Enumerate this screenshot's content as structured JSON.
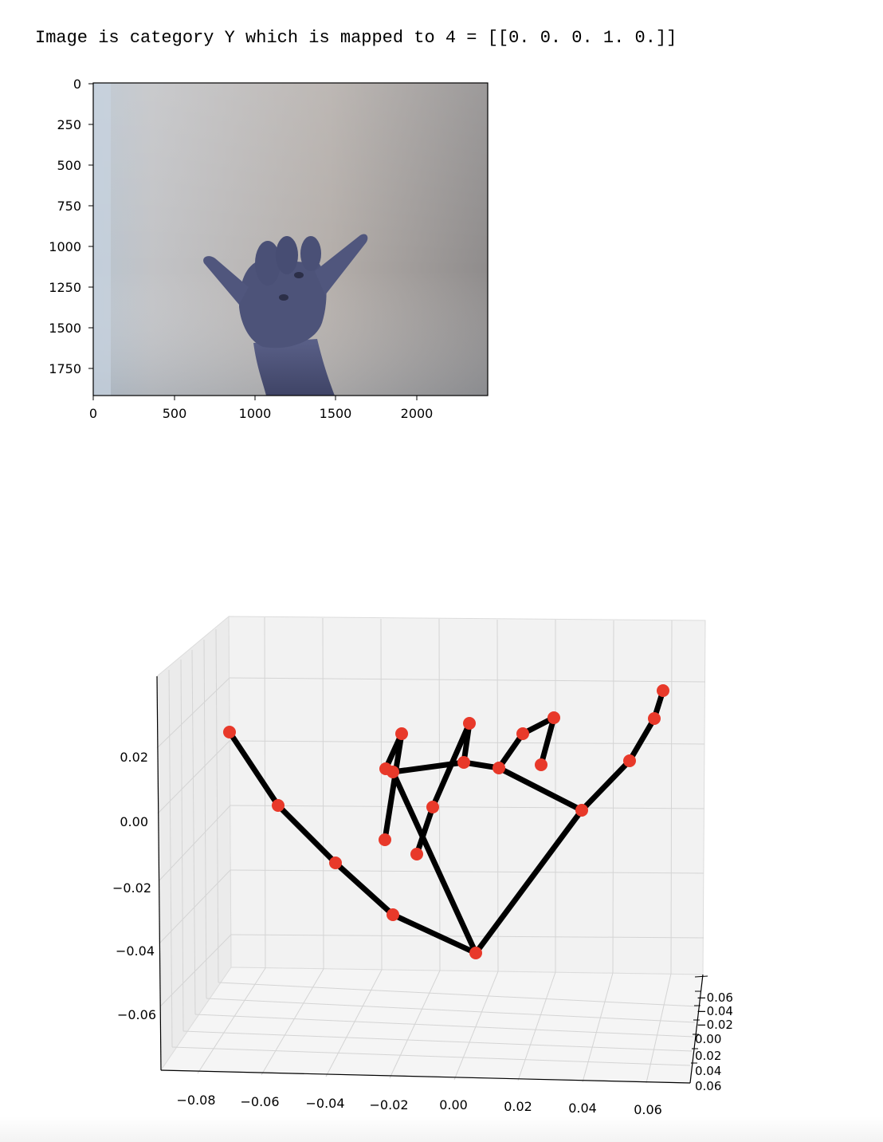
{
  "cell_output": {
    "text": "Image is category Y which is mapped to 4 = [[0. 0. 0. 1. 0.]]"
  },
  "image_plot": {
    "x_ticks": [
      "0",
      "500",
      "1000",
      "1500",
      "2000"
    ],
    "y_ticks": [
      "0",
      "250",
      "500",
      "750",
      "1000",
      "1250",
      "1500",
      "1750"
    ],
    "xlim": [
      0,
      2430
    ],
    "ylim": [
      1925,
      0
    ],
    "content": "hand-photo"
  },
  "chart_data": {
    "type": "scatter",
    "projection": "3d",
    "title": "",
    "x_ticks": [
      "−0.08",
      "−0.06",
      "−0.04",
      "−0.02",
      "0.00",
      "0.02",
      "0.04",
      "0.06"
    ],
    "y_ticks": [
      "−0.06",
      "−0.04",
      "−0.02",
      "0.00",
      "0.02",
      "0.04",
      "0.06"
    ],
    "z_ticks": [
      "0.02",
      "0.00",
      "−0.02",
      "−0.04",
      "−0.06"
    ],
    "grid": true,
    "point_color": "#e8392a",
    "line_color": "#000000",
    "landmarks": [
      {
        "id": 0,
        "label": "wrist"
      },
      {
        "id": 1,
        "label": "thumb-1"
      },
      {
        "id": 2,
        "label": "thumb-2"
      },
      {
        "id": 3,
        "label": "thumb-3"
      },
      {
        "id": 4,
        "label": "thumb-tip"
      },
      {
        "id": 5,
        "label": "index-mcp"
      },
      {
        "id": 6,
        "label": "index-pip"
      },
      {
        "id": 7,
        "label": "index-dip"
      },
      {
        "id": 8,
        "label": "index-tip"
      },
      {
        "id": 9,
        "label": "middle-mcp"
      },
      {
        "id": 10,
        "label": "middle-pip"
      },
      {
        "id": 11,
        "label": "middle-dip"
      },
      {
        "id": 12,
        "label": "middle-tip"
      },
      {
        "id": 13,
        "label": "ring-mcp"
      },
      {
        "id": 14,
        "label": "ring-pip"
      },
      {
        "id": 15,
        "label": "ring-dip"
      },
      {
        "id": 16,
        "label": "ring-tip"
      },
      {
        "id": 17,
        "label": "pinky-mcp"
      },
      {
        "id": 18,
        "label": "pinky-pip"
      },
      {
        "id": 19,
        "label": "pinky-dip"
      },
      {
        "id": 20,
        "label": "pinky-tip"
      }
    ],
    "connections": [
      [
        0,
        1
      ],
      [
        1,
        2
      ],
      [
        2,
        3
      ],
      [
        3,
        4
      ],
      [
        0,
        5
      ],
      [
        5,
        6
      ],
      [
        6,
        7
      ],
      [
        7,
        8
      ],
      [
        5,
        9
      ],
      [
        9,
        10
      ],
      [
        10,
        11
      ],
      [
        11,
        12
      ],
      [
        9,
        13
      ],
      [
        13,
        14
      ],
      [
        14,
        15
      ],
      [
        15,
        16
      ],
      [
        13,
        17
      ],
      [
        17,
        18
      ],
      [
        18,
        19
      ],
      [
        19,
        20
      ],
      [
        0,
        17
      ]
    ]
  }
}
